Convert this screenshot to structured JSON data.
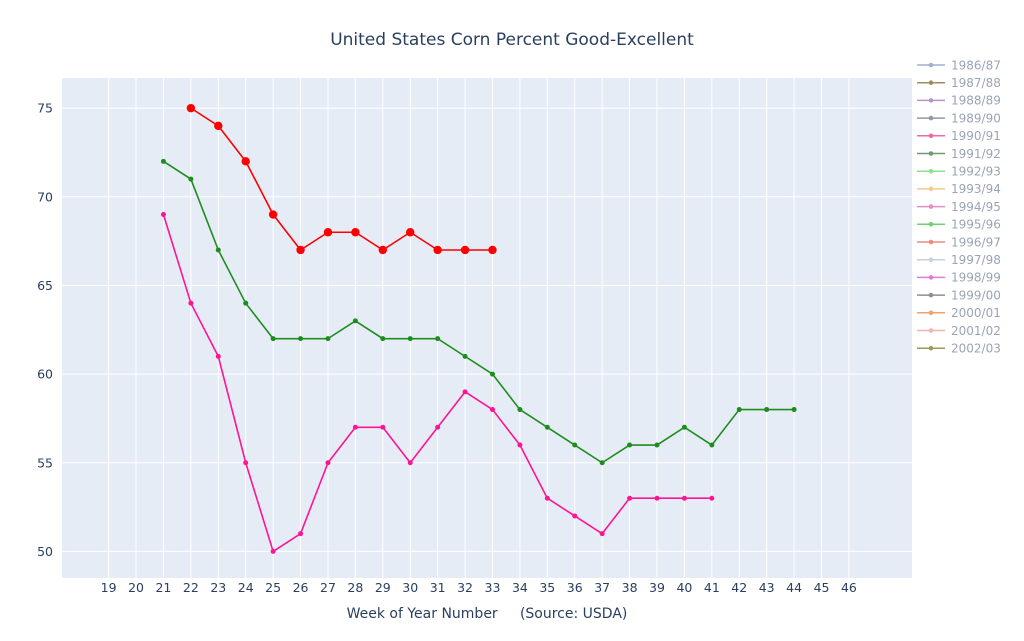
{
  "chart_data": {
    "type": "line",
    "title": "United States Corn Percent Good-Excellent",
    "xlabel": "Week of Year Number     (Source: USDA)",
    "ylabel": "",
    "x_ticks": [
      19,
      20,
      21,
      22,
      23,
      24,
      25,
      26,
      27,
      28,
      29,
      30,
      31,
      32,
      33,
      34,
      35,
      36,
      37,
      38,
      39,
      40,
      41,
      42,
      43,
      44,
      45,
      46
    ],
    "y_ticks": [
      50,
      55,
      60,
      65,
      70,
      75
    ],
    "xlim": [
      17.3,
      48.3
    ],
    "ylim": [
      48.5,
      76.7
    ],
    "grid": true,
    "legend_position": "right",
    "legend": [
      {
        "name": "1986/87",
        "color": "#9fb2cf"
      },
      {
        "name": "1987/88",
        "color": "#a08c5e"
      },
      {
        "name": "1988/89",
        "color": "#b596c4"
      },
      {
        "name": "1989/90",
        "color": "#8f98a8"
      },
      {
        "name": "1990/91",
        "color": "#e86aa6"
      },
      {
        "name": "1991/92",
        "color": "#6e9a70"
      },
      {
        "name": "1992/93",
        "color": "#8fe08f"
      },
      {
        "name": "1993/94",
        "color": "#f3c98c"
      },
      {
        "name": "1994/95",
        "color": "#e48ec2"
      },
      {
        "name": "1995/96",
        "color": "#6fd26f"
      },
      {
        "name": "1996/97",
        "color": "#f08a80"
      },
      {
        "name": "1997/98",
        "color": "#c9cfe6"
      },
      {
        "name": "1998/99",
        "color": "#e27ad8"
      },
      {
        "name": "1999/00",
        "color": "#8d8f94"
      },
      {
        "name": "2000/01",
        "color": "#f2a36b"
      },
      {
        "name": "2001/02",
        "color": "#f0b4b4"
      },
      {
        "name": "2002/03",
        "color": "#9c9a55"
      }
    ],
    "series": [
      {
        "color": "#ff1493",
        "marker_size": 2.5,
        "x": [
          21,
          22,
          23,
          24,
          25,
          26,
          27,
          28,
          29,
          30,
          31,
          32,
          33,
          34,
          35,
          36,
          37,
          38,
          39,
          40,
          41
        ],
        "y": [
          69,
          64,
          61,
          55,
          50,
          51,
          55,
          57,
          57,
          55,
          57,
          59,
          58,
          56,
          53,
          52,
          51,
          53,
          53,
          53,
          53
        ]
      },
      {
        "color": "#1e8c1e",
        "marker_size": 2.5,
        "x": [
          21,
          22,
          23,
          24,
          25,
          26,
          27,
          28,
          29,
          30,
          31,
          32,
          33,
          34,
          35,
          36,
          37,
          38,
          39,
          40,
          41,
          42,
          43,
          44
        ],
        "y": [
          72,
          71,
          67,
          64,
          62,
          62,
          62,
          63,
          62,
          62,
          62,
          61,
          60,
          58,
          57,
          56,
          55,
          56,
          56,
          57,
          56,
          58,
          58,
          58
        ]
      },
      {
        "color": "#ff0000",
        "marker_size": 4.2,
        "x": [
          22,
          23,
          24,
          25,
          26,
          27,
          28,
          29,
          30,
          31,
          32,
          33
        ],
        "y": [
          75,
          74,
          72,
          69,
          67,
          68,
          68,
          67,
          68,
          67,
          67,
          67
        ]
      }
    ]
  }
}
